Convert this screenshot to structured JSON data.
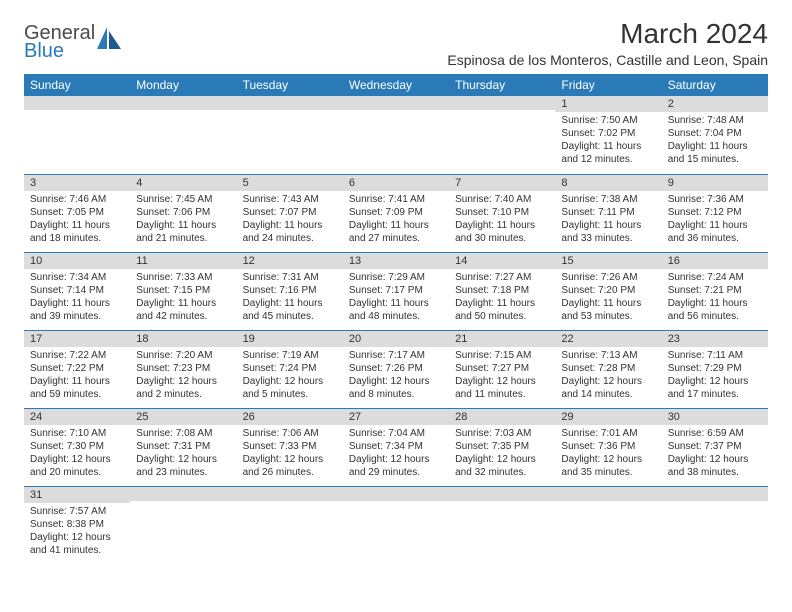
{
  "logo": {
    "text1": "General",
    "text2": "Blue",
    "accent_color": "#2a7ab8",
    "text_color": "#4a4a4a"
  },
  "month_title": "March 2024",
  "location": "Espinosa de los Monteros, Castille and Leon, Spain",
  "colors": {
    "header_bg": "#2a7ab8",
    "header_fg": "#ffffff",
    "daynum_bg": "#dcdcdc",
    "cell_border": "#2a7ab8",
    "text": "#333333",
    "background": "#ffffff"
  },
  "day_headers": [
    "Sunday",
    "Monday",
    "Tuesday",
    "Wednesday",
    "Thursday",
    "Friday",
    "Saturday"
  ],
  "weeks": [
    [
      {
        "num": "",
        "sunrise": "",
        "sunset": "",
        "daylight": ""
      },
      {
        "num": "",
        "sunrise": "",
        "sunset": "",
        "daylight": ""
      },
      {
        "num": "",
        "sunrise": "",
        "sunset": "",
        "daylight": ""
      },
      {
        "num": "",
        "sunrise": "",
        "sunset": "",
        "daylight": ""
      },
      {
        "num": "",
        "sunrise": "",
        "sunset": "",
        "daylight": ""
      },
      {
        "num": "1",
        "sunrise": "Sunrise: 7:50 AM",
        "sunset": "Sunset: 7:02 PM",
        "daylight": "Daylight: 11 hours and 12 minutes."
      },
      {
        "num": "2",
        "sunrise": "Sunrise: 7:48 AM",
        "sunset": "Sunset: 7:04 PM",
        "daylight": "Daylight: 11 hours and 15 minutes."
      }
    ],
    [
      {
        "num": "3",
        "sunrise": "Sunrise: 7:46 AM",
        "sunset": "Sunset: 7:05 PM",
        "daylight": "Daylight: 11 hours and 18 minutes."
      },
      {
        "num": "4",
        "sunrise": "Sunrise: 7:45 AM",
        "sunset": "Sunset: 7:06 PM",
        "daylight": "Daylight: 11 hours and 21 minutes."
      },
      {
        "num": "5",
        "sunrise": "Sunrise: 7:43 AM",
        "sunset": "Sunset: 7:07 PM",
        "daylight": "Daylight: 11 hours and 24 minutes."
      },
      {
        "num": "6",
        "sunrise": "Sunrise: 7:41 AM",
        "sunset": "Sunset: 7:09 PM",
        "daylight": "Daylight: 11 hours and 27 minutes."
      },
      {
        "num": "7",
        "sunrise": "Sunrise: 7:40 AM",
        "sunset": "Sunset: 7:10 PM",
        "daylight": "Daylight: 11 hours and 30 minutes."
      },
      {
        "num": "8",
        "sunrise": "Sunrise: 7:38 AM",
        "sunset": "Sunset: 7:11 PM",
        "daylight": "Daylight: 11 hours and 33 minutes."
      },
      {
        "num": "9",
        "sunrise": "Sunrise: 7:36 AM",
        "sunset": "Sunset: 7:12 PM",
        "daylight": "Daylight: 11 hours and 36 minutes."
      }
    ],
    [
      {
        "num": "10",
        "sunrise": "Sunrise: 7:34 AM",
        "sunset": "Sunset: 7:14 PM",
        "daylight": "Daylight: 11 hours and 39 minutes."
      },
      {
        "num": "11",
        "sunrise": "Sunrise: 7:33 AM",
        "sunset": "Sunset: 7:15 PM",
        "daylight": "Daylight: 11 hours and 42 minutes."
      },
      {
        "num": "12",
        "sunrise": "Sunrise: 7:31 AM",
        "sunset": "Sunset: 7:16 PM",
        "daylight": "Daylight: 11 hours and 45 minutes."
      },
      {
        "num": "13",
        "sunrise": "Sunrise: 7:29 AM",
        "sunset": "Sunset: 7:17 PM",
        "daylight": "Daylight: 11 hours and 48 minutes."
      },
      {
        "num": "14",
        "sunrise": "Sunrise: 7:27 AM",
        "sunset": "Sunset: 7:18 PM",
        "daylight": "Daylight: 11 hours and 50 minutes."
      },
      {
        "num": "15",
        "sunrise": "Sunrise: 7:26 AM",
        "sunset": "Sunset: 7:20 PM",
        "daylight": "Daylight: 11 hours and 53 minutes."
      },
      {
        "num": "16",
        "sunrise": "Sunrise: 7:24 AM",
        "sunset": "Sunset: 7:21 PM",
        "daylight": "Daylight: 11 hours and 56 minutes."
      }
    ],
    [
      {
        "num": "17",
        "sunrise": "Sunrise: 7:22 AM",
        "sunset": "Sunset: 7:22 PM",
        "daylight": "Daylight: 11 hours and 59 minutes."
      },
      {
        "num": "18",
        "sunrise": "Sunrise: 7:20 AM",
        "sunset": "Sunset: 7:23 PM",
        "daylight": "Daylight: 12 hours and 2 minutes."
      },
      {
        "num": "19",
        "sunrise": "Sunrise: 7:19 AM",
        "sunset": "Sunset: 7:24 PM",
        "daylight": "Daylight: 12 hours and 5 minutes."
      },
      {
        "num": "20",
        "sunrise": "Sunrise: 7:17 AM",
        "sunset": "Sunset: 7:26 PM",
        "daylight": "Daylight: 12 hours and 8 minutes."
      },
      {
        "num": "21",
        "sunrise": "Sunrise: 7:15 AM",
        "sunset": "Sunset: 7:27 PM",
        "daylight": "Daylight: 12 hours and 11 minutes."
      },
      {
        "num": "22",
        "sunrise": "Sunrise: 7:13 AM",
        "sunset": "Sunset: 7:28 PM",
        "daylight": "Daylight: 12 hours and 14 minutes."
      },
      {
        "num": "23",
        "sunrise": "Sunrise: 7:11 AM",
        "sunset": "Sunset: 7:29 PM",
        "daylight": "Daylight: 12 hours and 17 minutes."
      }
    ],
    [
      {
        "num": "24",
        "sunrise": "Sunrise: 7:10 AM",
        "sunset": "Sunset: 7:30 PM",
        "daylight": "Daylight: 12 hours and 20 minutes."
      },
      {
        "num": "25",
        "sunrise": "Sunrise: 7:08 AM",
        "sunset": "Sunset: 7:31 PM",
        "daylight": "Daylight: 12 hours and 23 minutes."
      },
      {
        "num": "26",
        "sunrise": "Sunrise: 7:06 AM",
        "sunset": "Sunset: 7:33 PM",
        "daylight": "Daylight: 12 hours and 26 minutes."
      },
      {
        "num": "27",
        "sunrise": "Sunrise: 7:04 AM",
        "sunset": "Sunset: 7:34 PM",
        "daylight": "Daylight: 12 hours and 29 minutes."
      },
      {
        "num": "28",
        "sunrise": "Sunrise: 7:03 AM",
        "sunset": "Sunset: 7:35 PM",
        "daylight": "Daylight: 12 hours and 32 minutes."
      },
      {
        "num": "29",
        "sunrise": "Sunrise: 7:01 AM",
        "sunset": "Sunset: 7:36 PM",
        "daylight": "Daylight: 12 hours and 35 minutes."
      },
      {
        "num": "30",
        "sunrise": "Sunrise: 6:59 AM",
        "sunset": "Sunset: 7:37 PM",
        "daylight": "Daylight: 12 hours and 38 minutes."
      }
    ],
    [
      {
        "num": "31",
        "sunrise": "Sunrise: 7:57 AM",
        "sunset": "Sunset: 8:38 PM",
        "daylight": "Daylight: 12 hours and 41 minutes."
      },
      {
        "num": "",
        "sunrise": "",
        "sunset": "",
        "daylight": ""
      },
      {
        "num": "",
        "sunrise": "",
        "sunset": "",
        "daylight": ""
      },
      {
        "num": "",
        "sunrise": "",
        "sunset": "",
        "daylight": ""
      },
      {
        "num": "",
        "sunrise": "",
        "sunset": "",
        "daylight": ""
      },
      {
        "num": "",
        "sunrise": "",
        "sunset": "",
        "daylight": ""
      },
      {
        "num": "",
        "sunrise": "",
        "sunset": "",
        "daylight": ""
      }
    ]
  ]
}
